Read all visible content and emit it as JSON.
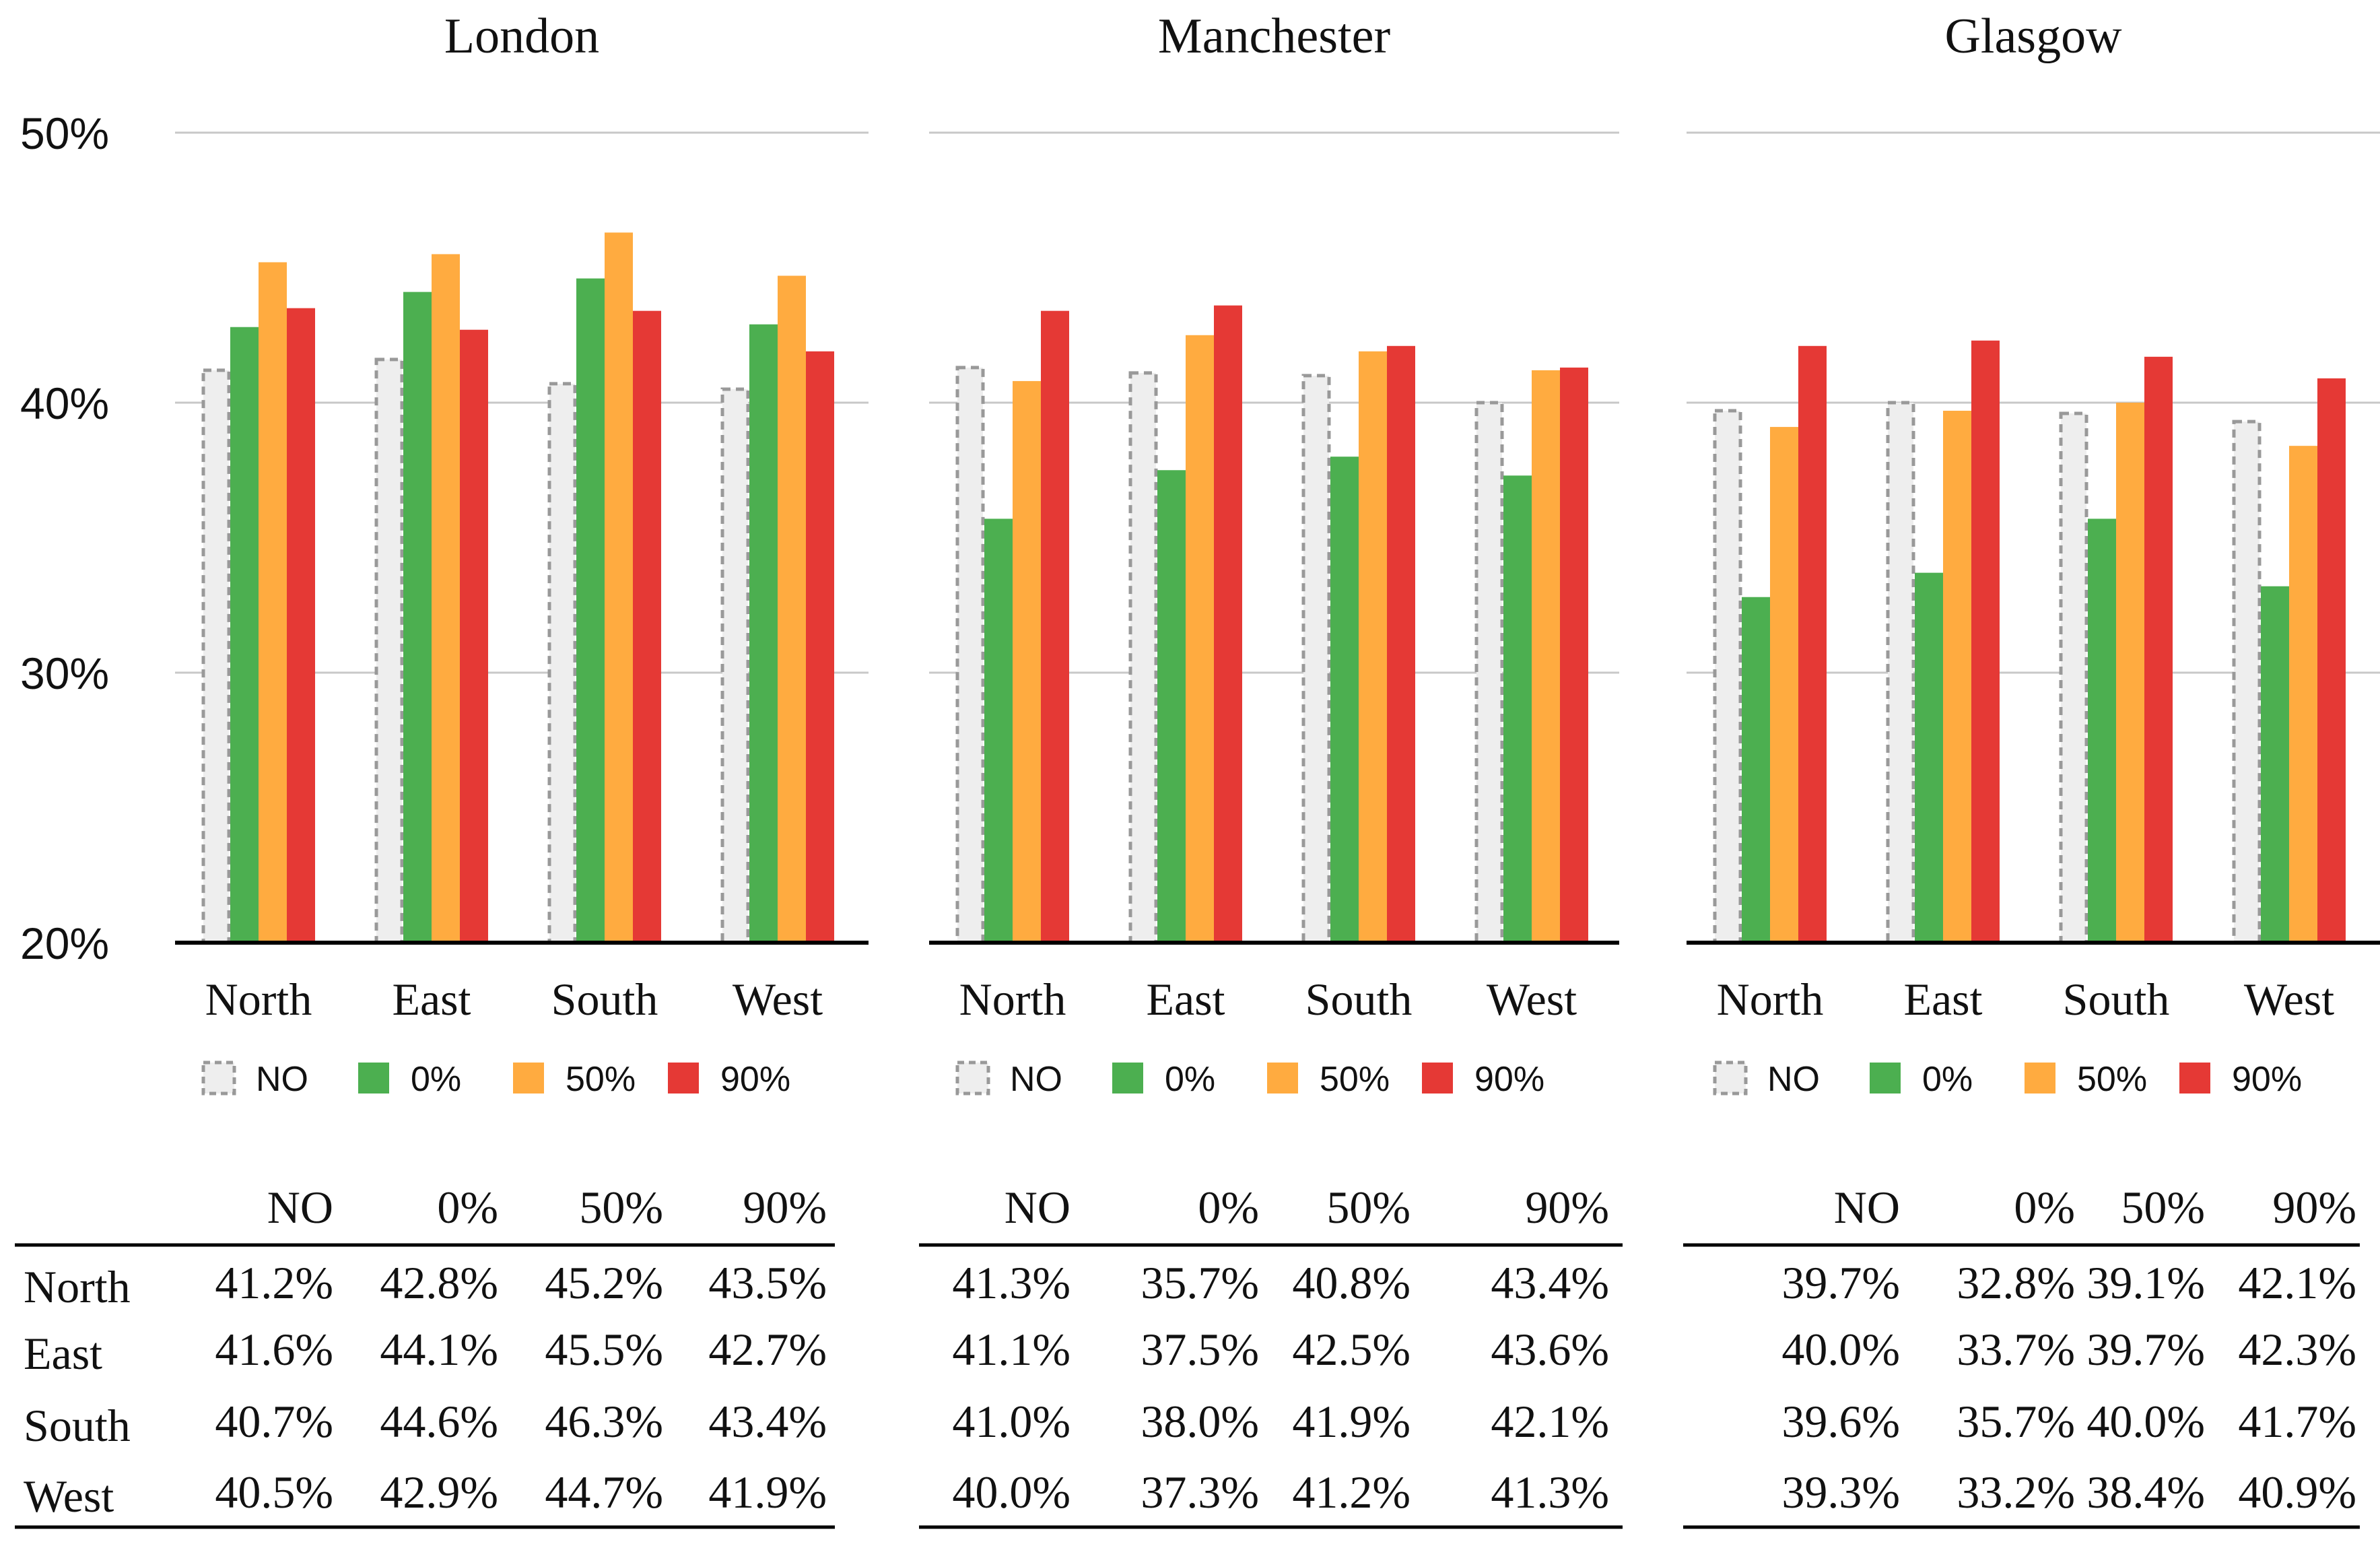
{
  "chart_data": {
    "type": "bar",
    "y_axis": {
      "ylim": [
        20,
        50
      ],
      "ticks": [
        20,
        30,
        40,
        50
      ],
      "tick_labels": [
        "20%",
        "30%",
        "40%",
        "50%"
      ]
    },
    "grid": true,
    "categories": [
      "North",
      "East",
      "South",
      "West"
    ],
    "series_names": [
      "NO",
      "0%",
      "50%",
      "90%"
    ],
    "colors": {
      "NO": "#eeeeee",
      "NO_border": "#999999",
      "0%": "#4caf50",
      "50%": "#ffab40",
      "90%": "#e53935"
    },
    "table_columns": [
      "NO",
      "0%",
      "50%",
      "90%"
    ],
    "panels": [
      {
        "title": "London",
        "series": [
          {
            "name": "NO",
            "values": [
              41.2,
              41.6,
              40.7,
              40.5
            ]
          },
          {
            "name": "0%",
            "values": [
              42.8,
              44.1,
              44.6,
              42.9
            ]
          },
          {
            "name": "50%",
            "values": [
              45.2,
              45.5,
              46.3,
              44.7
            ]
          },
          {
            "name": "90%",
            "values": [
              43.5,
              42.7,
              43.4,
              41.9
            ]
          }
        ],
        "table": [
          [
            "41.2%",
            "42.8%",
            "45.2%",
            "43.5%"
          ],
          [
            "41.6%",
            "44.1%",
            "45.5%",
            "42.7%"
          ],
          [
            "40.7%",
            "44.6%",
            "46.3%",
            "43.4%"
          ],
          [
            "40.5%",
            "42.9%",
            "44.7%",
            "41.9%"
          ]
        ]
      },
      {
        "title": "Manchester",
        "series": [
          {
            "name": "NO",
            "values": [
              41.3,
              41.1,
              41.0,
              40.0
            ]
          },
          {
            "name": "0%",
            "values": [
              35.7,
              37.5,
              38.0,
              37.3
            ]
          },
          {
            "name": "50%",
            "values": [
              40.8,
              42.5,
              41.9,
              41.2
            ]
          },
          {
            "name": "90%",
            "values": [
              43.4,
              43.6,
              42.1,
              41.3
            ]
          }
        ],
        "table": [
          [
            "41.3%",
            "35.7%",
            "40.8%",
            "43.4%"
          ],
          [
            "41.1%",
            "37.5%",
            "42.5%",
            "43.6%"
          ],
          [
            "41.0%",
            "38.0%",
            "41.9%",
            "42.1%"
          ],
          [
            "40.0%",
            "37.3%",
            "41.2%",
            "41.3%"
          ]
        ]
      },
      {
        "title": "Glasgow",
        "series": [
          {
            "name": "NO",
            "values": [
              39.7,
              40.0,
              39.6,
              39.3
            ]
          },
          {
            "name": "0%",
            "values": [
              32.8,
              33.7,
              35.7,
              33.2
            ]
          },
          {
            "name": "50%",
            "values": [
              39.1,
              39.7,
              40.0,
              38.4
            ]
          },
          {
            "name": "90%",
            "values": [
              42.1,
              42.3,
              41.7,
              40.9
            ]
          }
        ],
        "table": [
          [
            "39.7%",
            "32.8%",
            "39.1%",
            "42.1%"
          ],
          [
            "40.0%",
            "33.7%",
            "39.7%",
            "42.3%"
          ],
          [
            "39.6%",
            "35.7%",
            "40.0%",
            "41.7%"
          ],
          [
            "39.3%",
            "33.2%",
            "38.4%",
            "40.9%"
          ]
        ]
      }
    ]
  }
}
